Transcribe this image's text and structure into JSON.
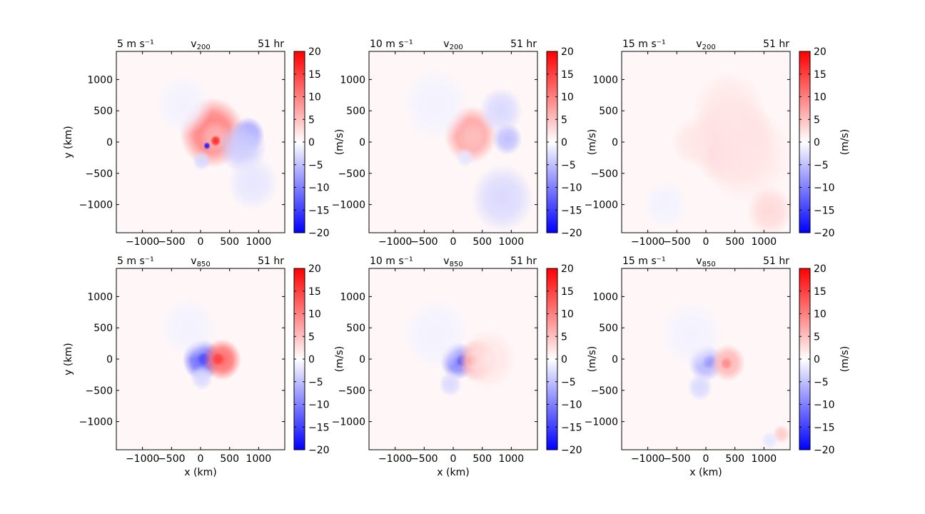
{
  "figure": {
    "colormap": "bwr",
    "colors": {
      "negative": "#0000ff",
      "zero": "#ffffff",
      "positive": "#ff0000",
      "frame": "#000000"
    },
    "colorbar": {
      "label": "(m/s)",
      "range": [
        -20,
        20
      ],
      "ticks": [
        "20",
        "15",
        "10",
        "5",
        "0",
        "−5",
        "−10",
        "−15",
        "−20"
      ]
    },
    "axes": {
      "xlabel": "x (km)",
      "ylabel": "y (km)",
      "xticks": [
        "−1000",
        "−500",
        "0",
        "500",
        "1000"
      ],
      "yticks": [
        "1000",
        "500",
        "0",
        "−500",
        "−1000"
      ],
      "range_km": [
        -1450,
        1450
      ]
    }
  },
  "chart_data": [
    {
      "type": "heatmap",
      "row": "top",
      "col": 1,
      "left_title": "5 m s⁻¹",
      "var": "v",
      "sub": "200",
      "right_title": "51 hr",
      "features": [
        {
          "x": 200,
          "y": 150,
          "v": 11,
          "r": 560
        },
        {
          "x": 250,
          "y": 80,
          "v": 6,
          "r": 280
        },
        {
          "x": 260,
          "y": 20,
          "v": 17,
          "r": 90
        },
        {
          "x": 110,
          "y": -60,
          "v": -18,
          "r": 60
        },
        {
          "x": 820,
          "y": 120,
          "v": -8,
          "r": 280
        },
        {
          "x": 720,
          "y": -80,
          "v": -4,
          "r": 420
        },
        {
          "x": 900,
          "y": -650,
          "v": -2,
          "r": 450
        },
        {
          "x": 20,
          "y": -300,
          "v": -3,
          "r": 160
        },
        {
          "x": -300,
          "y": 600,
          "v": -1,
          "r": 500
        }
      ]
    },
    {
      "type": "heatmap",
      "row": "top",
      "col": 2,
      "left_title": "10 m s⁻¹",
      "var": "v",
      "sub": "200",
      "right_title": "51 hr",
      "features": [
        {
          "x": 300,
          "y": 120,
          "v": 8,
          "r": 460
        },
        {
          "x": 330,
          "y": 80,
          "v": 5,
          "r": 260
        },
        {
          "x": 930,
          "y": 50,
          "v": -5,
          "r": 260
        },
        {
          "x": 820,
          "y": 500,
          "v": -3,
          "r": 380
        },
        {
          "x": 850,
          "y": -900,
          "v": -3,
          "r": 550
        },
        {
          "x": 200,
          "y": -250,
          "v": -2,
          "r": 160
        },
        {
          "x": -300,
          "y": 600,
          "v": -1,
          "r": 600
        }
      ]
    },
    {
      "type": "heatmap",
      "row": "top",
      "col": 3,
      "left_title": "15 m s⁻¹",
      "var": "v",
      "sub": "200",
      "right_title": "51 hr",
      "features": [
        {
          "x": 450,
          "y": 20,
          "v": 4,
          "r": 750
        },
        {
          "x": 700,
          "y": -200,
          "v": 2,
          "r": 800
        },
        {
          "x": 400,
          "y": 500,
          "v": 2,
          "r": 650
        },
        {
          "x": 1100,
          "y": -1100,
          "v": 3,
          "r": 400
        },
        {
          "x": -200,
          "y": 0,
          "v": 2,
          "r": 400
        },
        {
          "x": -700,
          "y": -1000,
          "v": -1,
          "r": 400
        }
      ]
    },
    {
      "type": "heatmap",
      "row": "bottom",
      "col": 1,
      "left_title": "5 m s⁻¹",
      "var": "v",
      "sub": "850",
      "right_title": "51 hr",
      "features": [
        {
          "x": 20,
          "y": -10,
          "v": -12,
          "r": 330
        },
        {
          "x": 60,
          "y": 0,
          "v": -14,
          "r": 110
        },
        {
          "x": 370,
          "y": -10,
          "v": 12,
          "r": 330
        },
        {
          "x": 300,
          "y": 0,
          "v": 15,
          "r": 110
        },
        {
          "x": 20,
          "y": -300,
          "v": -3,
          "r": 200
        },
        {
          "x": -200,
          "y": 500,
          "v": -1,
          "r": 500
        }
      ]
    },
    {
      "type": "heatmap",
      "row": "bottom",
      "col": 2,
      "left_title": "10 m s⁻¹",
      "var": "v",
      "sub": "850",
      "right_title": "51 hr",
      "features": [
        {
          "x": 80,
          "y": -30,
          "v": -10,
          "r": 300
        },
        {
          "x": 160,
          "y": -20,
          "v": -14,
          "r": 110
        },
        {
          "x": 420,
          "y": -20,
          "v": 9,
          "r": 340
        },
        {
          "x": 330,
          "y": -20,
          "v": 14,
          "r": 100
        },
        {
          "x": -50,
          "y": -400,
          "v": -3,
          "r": 200
        },
        {
          "x": 600,
          "y": 0,
          "v": 2,
          "r": 500
        },
        {
          "x": -300,
          "y": 400,
          "v": -1,
          "r": 600
        }
      ]
    },
    {
      "type": "heatmap",
      "row": "bottom",
      "col": 3,
      "left_title": "15 m s⁻¹",
      "var": "v",
      "sub": "850",
      "right_title": "51 hr",
      "features": [
        {
          "x": 0,
          "y": -60,
          "v": -6,
          "r": 300
        },
        {
          "x": 60,
          "y": -40,
          "v": -8,
          "r": 120
        },
        {
          "x": 380,
          "y": -60,
          "v": 6,
          "r": 300
        },
        {
          "x": 350,
          "y": -70,
          "v": 9,
          "r": 100
        },
        {
          "x": -100,
          "y": -450,
          "v": -3,
          "r": 220
        },
        {
          "x": 1300,
          "y": -1200,
          "v": 4,
          "r": 150
        },
        {
          "x": 1100,
          "y": -1300,
          "v": -2,
          "r": 150
        },
        {
          "x": -250,
          "y": 400,
          "v": -1,
          "r": 550
        }
      ]
    }
  ]
}
